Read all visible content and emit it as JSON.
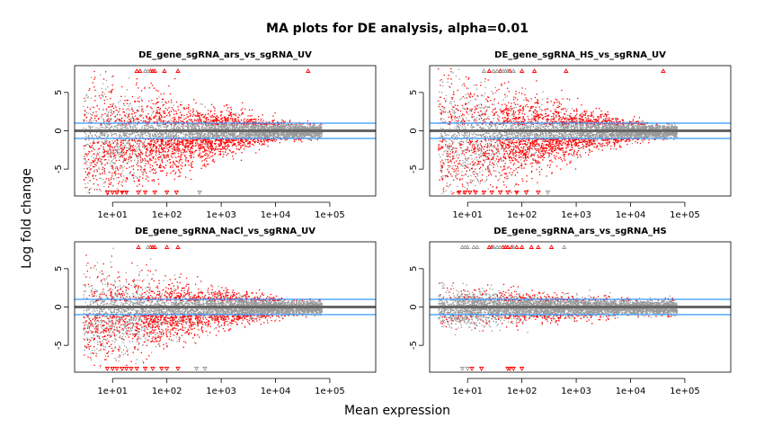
{
  "figure": {
    "title": "MA plots for DE analysis, alpha=0.01",
    "xlabel": "Mean expression",
    "ylabel": "Log fold change"
  },
  "colors": {
    "significant": "#ff0000",
    "not_significant": "#999999",
    "zero_line": "#666666",
    "threshold_line": "#3399ff"
  },
  "chart_data": [
    {
      "type": "scatter",
      "title": "DE_gene_sgRNA_ars_vs_sgRNA_UV",
      "x_scale": "log10",
      "xlim": [
        2,
        700000
      ],
      "ylim": [
        -8.5,
        8.5
      ],
      "x_ticks": [
        10,
        100,
        1000,
        10000,
        100000
      ],
      "x_tick_labels": [
        "1e+01",
        "1e+02",
        "1e+03",
        "1e+04",
        "1e+05"
      ],
      "y_ticks": [
        -5,
        0,
        5
      ],
      "y_tick_labels": [
        "-5",
        "0",
        "5"
      ],
      "hlines": [
        0,
        -1,
        1
      ],
      "sig_bias": -0.55,
      "low_spread": 5.0,
      "sig_density": 0.6,
      "clip_top_sig_x": [
        28,
        32,
        50,
        55,
        60,
        90,
        160,
        40000
      ],
      "clip_top_ns_x": [
        40,
        45
      ],
      "clip_bottom_sig_x": [
        8,
        10,
        12,
        15,
        18,
        30,
        40,
        60,
        100,
        150
      ],
      "clip_bottom_ns_x": [
        400
      ]
    },
    {
      "type": "scatter",
      "title": "DE_gene_sgRNA_HS_vs_sgRNA_UV",
      "x_scale": "log10",
      "xlim": [
        2,
        700000
      ],
      "ylim": [
        -8.5,
        8.5
      ],
      "x_ticks": [
        10,
        100,
        1000,
        10000,
        100000
      ],
      "x_tick_labels": [
        "1e+01",
        "1e+02",
        "1e+03",
        "1e+04",
        "1e+05"
      ],
      "y_ticks": [
        -5,
        0,
        5
      ],
      "y_tick_labels": [
        "-5",
        "0",
        "5"
      ],
      "hlines": [
        0,
        -1,
        1
      ],
      "sig_bias": -0.4,
      "low_spread": 5.5,
      "sig_density": 0.55,
      "clip_top_sig_x": [
        25,
        40,
        60,
        100,
        170,
        650,
        40000
      ],
      "clip_top_ns_x": [
        20,
        30,
        35,
        45,
        50,
        55,
        70
      ],
      "clip_bottom_sig_x": [
        7,
        9,
        11,
        14,
        20,
        28,
        40,
        55,
        80,
        120,
        200
      ],
      "clip_bottom_ns_x": [
        300
      ]
    },
    {
      "type": "scatter",
      "title": "DE_gene_sgRNA_NaCl_vs_sgRNA_UV",
      "x_scale": "log10",
      "xlim": [
        2,
        700000
      ],
      "ylim": [
        -8.5,
        8.5
      ],
      "x_ticks": [
        10,
        100,
        1000,
        10000,
        100000
      ],
      "x_tick_labels": [
        "1e+01",
        "1e+02",
        "1e+03",
        "1e+04",
        "1e+05"
      ],
      "y_ticks": [
        -5,
        0,
        5
      ],
      "y_tick_labels": [
        "-5",
        "0",
        "5"
      ],
      "hlines": [
        0,
        -1,
        1
      ],
      "sig_bias": -0.45,
      "low_spread": 3.8,
      "sig_density": 0.5,
      "clip_top_sig_x": [
        30,
        50,
        55,
        60,
        100,
        160
      ],
      "clip_top_ns_x": [
        45
      ],
      "clip_bottom_sig_x": [
        8,
        10,
        12,
        15,
        18,
        22,
        28,
        40,
        55,
        80,
        100,
        160
      ],
      "clip_bottom_ns_x": [
        350,
        500
      ]
    },
    {
      "type": "scatter",
      "title": "DE_gene_sgRNA_ars_vs_sgRNA_HS",
      "x_scale": "log10",
      "xlim": [
        2,
        700000
      ],
      "ylim": [
        -8.5,
        8.5
      ],
      "x_ticks": [
        10,
        100,
        1000,
        10000,
        100000
      ],
      "x_tick_labels": [
        "1e+01",
        "1e+02",
        "1e+03",
        "1e+04",
        "1e+05"
      ],
      "y_ticks": [
        -5,
        0,
        5
      ],
      "y_tick_labels": [
        "-5",
        "0",
        "5"
      ],
      "hlines": [
        0,
        -1,
        1
      ],
      "sig_bias": 0.0,
      "low_spread": 1.2,
      "sig_density": 0.25,
      "clip_top_sig_x": [
        25,
        28,
        45,
        50,
        55,
        65,
        80,
        100,
        150,
        200,
        350
      ],
      "clip_top_ns_x": [
        8,
        9,
        10,
        13,
        15,
        30,
        35,
        40,
        70,
        600
      ],
      "clip_bottom_sig_x": [
        12,
        18,
        55,
        60,
        70,
        100
      ],
      "clip_bottom_ns_x": [
        8,
        10
      ]
    }
  ]
}
